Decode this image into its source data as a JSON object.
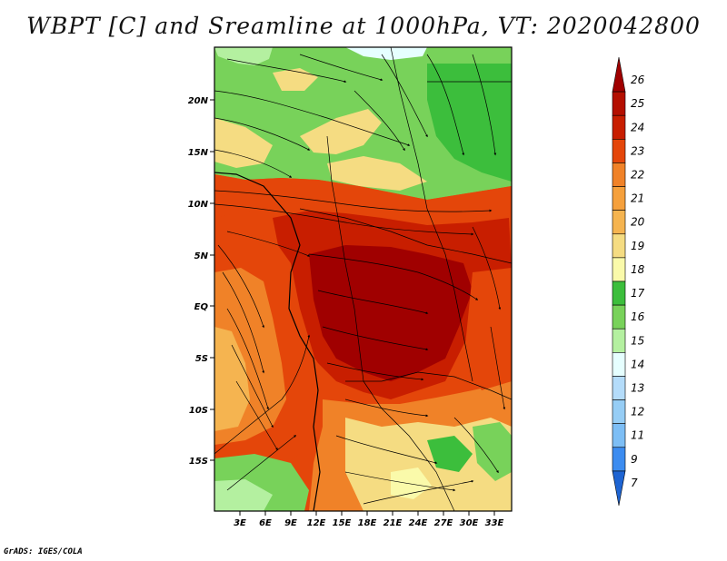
{
  "title": "WBPT [C] and Sreamline at 1000hPa, VT: 2020042800",
  "footer": "GrADS: IGES/COLA",
  "colors": {
    "dark_red": "#a00000",
    "red": "#c81e00",
    "orange_red": "#e4460a",
    "orange": "#f08228",
    "light_orange": "#f5b450",
    "pale_yellow": "#f5dc82",
    "light_yellow": "#fafaaa",
    "dark_green": "#3cbe3c",
    "mid_green": "#78d25a",
    "light_green": "#b4f0a0",
    "pale_cyan": "#e6ffff",
    "light_blue": "#b4dcfa",
    "mid_blue": "#7dbef5",
    "blue": "#3c8cf0",
    "dark_blue": "#1e64d2"
  },
  "map": {
    "lat_labels": [
      "20N",
      "15N",
      "10N",
      "5N",
      "EQ",
      "5S",
      "10S",
      "15S"
    ],
    "lon_labels": [
      "3E",
      "6E",
      "9E",
      "12E",
      "15E",
      "18E",
      "21E",
      "24E",
      "27E",
      "30E",
      "33E"
    ]
  },
  "colorbar": {
    "labels": [
      "26",
      "25",
      "24",
      "23",
      "22",
      "21",
      "20",
      "19",
      "18",
      "17",
      "16",
      "15",
      "14",
      "13",
      "12",
      "11",
      "9",
      "7"
    ],
    "colors": [
      "#a00000",
      "#b40f00",
      "#c81e00",
      "#e4460a",
      "#f08228",
      "#f5a03c",
      "#f5b450",
      "#f5dc82",
      "#fafaaa",
      "#3cbe3c",
      "#78d25a",
      "#b4f0a0",
      "#e6ffff",
      "#b4dcfa",
      "#96cdf5",
      "#7dbef5",
      "#3c8cf0",
      "#1e64d2"
    ]
  }
}
